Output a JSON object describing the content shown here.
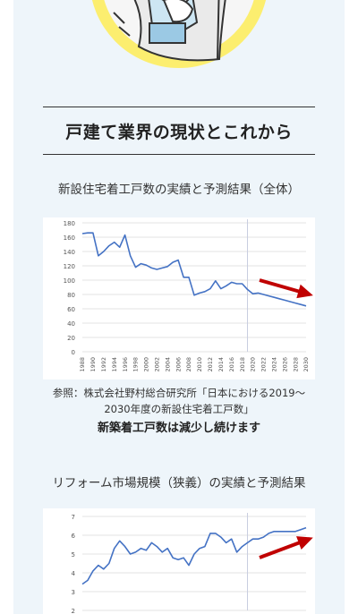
{
  "section": {
    "title": "戸建て業界の現状とこれから"
  },
  "chart1_heading": "新設住宅着工戸数の実績と予測結果（全体）",
  "chart2_heading": "リフォーム市場規模（狭義）の実績と予測結果",
  "chart1_source": [
    "参照：株式会社野村総合研究所「日本における2019～",
    "2030年度の新設住宅着工戸数」"
  ],
  "chart1_note": "新築着工戸数は減少し続けます",
  "colors": {
    "line": "#4472c4",
    "arrow": "#c00000",
    "hero_yellow": "#fcee6f",
    "panel": "#eef5fa"
  },
  "chart_data": [
    {
      "type": "line",
      "x": [
        1988,
        1989,
        1990,
        1991,
        1992,
        1993,
        1994,
        1995,
        1996,
        1997,
        1998,
        1999,
        2000,
        2001,
        2002,
        2003,
        2004,
        2005,
        2006,
        2007,
        2008,
        2009,
        2010,
        2011,
        2012,
        2013,
        2014,
        2015,
        2016,
        2017,
        2018,
        2019,
        2020,
        2021,
        2022,
        2023,
        2024,
        2025,
        2026,
        2027,
        2028,
        2029,
        2030
      ],
      "values": [
        165,
        166,
        166,
        134,
        140,
        148,
        153,
        146,
        163,
        134,
        118,
        123,
        121,
        117,
        115,
        117,
        119,
        125,
        128,
        104,
        104,
        79,
        82,
        84,
        88,
        99,
        88,
        92,
        97,
        95,
        95,
        87,
        81,
        82,
        80,
        78,
        76,
        74,
        72,
        70,
        68,
        66,
        64
      ],
      "xticks": [
        "1988",
        "1990",
        "1992",
        "1994",
        "1996",
        "1998",
        "2000",
        "2002",
        "2004",
        "2006",
        "2008",
        "2010",
        "2012",
        "2014",
        "2016",
        "2018",
        "2020",
        "2022",
        "2024",
        "2026",
        "2028",
        "2030"
      ],
      "yticks": [
        "0",
        "20",
        "40",
        "60",
        "80",
        "100",
        "120",
        "140",
        "160",
        "180"
      ],
      "ylim": [
        0,
        180
      ],
      "xlim": [
        1988,
        2030
      ],
      "actual_end": 2019,
      "grid": true,
      "trend": "down"
    },
    {
      "type": "line",
      "x": [
        1988,
        1989,
        1990,
        1991,
        1992,
        1993,
        1994,
        1995,
        1996,
        1997,
        1998,
        1999,
        2000,
        2001,
        2002,
        2003,
        2004,
        2005,
        2006,
        2007,
        2008,
        2009,
        2010,
        2011,
        2012,
        2013,
        2014,
        2015,
        2016,
        2017,
        2018,
        2019,
        2020,
        2021,
        2022,
        2023,
        2024,
        2025,
        2026,
        2027,
        2028,
        2029,
        2030
      ],
      "values": [
        3.4,
        3.6,
        4.1,
        4.4,
        4.2,
        4.5,
        5.3,
        5.7,
        5.4,
        5.0,
        5.1,
        5.3,
        5.2,
        5.6,
        5.4,
        5.1,
        5.3,
        4.8,
        4.7,
        4.8,
        4.4,
        5.0,
        5.3,
        5.4,
        6.1,
        6.1,
        5.9,
        5.6,
        5.8,
        5.1,
        5.4,
        5.6,
        5.8,
        5.8,
        5.9,
        6.1,
        6.2,
        6.2,
        6.2,
        6.2,
        6.2,
        6.3,
        6.4
      ],
      "yticks": [
        "2",
        "3",
        "4",
        "5",
        "6",
        "7"
      ],
      "ylim": [
        2,
        7
      ],
      "xlim": [
        1988,
        2030
      ],
      "actual_end": 2019,
      "grid": true,
      "trend": "up"
    }
  ]
}
